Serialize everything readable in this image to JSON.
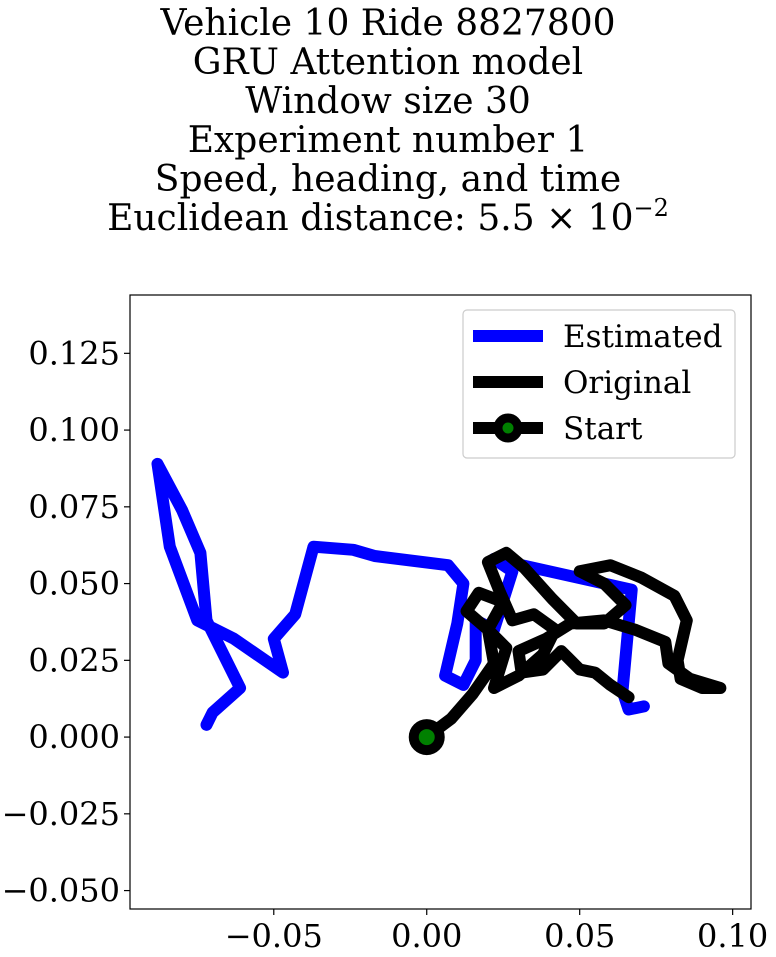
{
  "title": {
    "line1": "Vehicle 10 Ride 8827800",
    "line2": "GRU Attention model",
    "line3": "Window size 30",
    "line4": "Experiment number 1",
    "line5": "Speed, heading, and time",
    "line6_prefix": "Euclidean distance: 5.5 × 10",
    "line6_exponent": "−2"
  },
  "chart_data": {
    "type": "line",
    "xlim": [
      -0.097,
      0.106
    ],
    "ylim": [
      -0.056,
      0.144
    ],
    "x_ticks": [
      -0.05,
      0.0,
      0.05,
      0.1
    ],
    "x_tick_labels": [
      "−0.05",
      "0.00",
      "0.05",
      "0.10"
    ],
    "y_ticks": [
      0.125,
      0.1,
      0.075,
      0.05,
      0.025,
      0.0,
      -0.025,
      -0.05
    ],
    "y_tick_labels": [
      "0.125",
      "0.100",
      "0.075",
      "0.050",
      "0.025",
      "0.000",
      "−0.025",
      "−0.050"
    ],
    "grid": false,
    "legend_position": "top-right",
    "series": [
      {
        "name": "Estimated",
        "color": "#0000ff",
        "x": [
          -0.072,
          -0.07,
          -0.061,
          -0.072,
          -0.074,
          -0.08,
          -0.088,
          -0.084,
          -0.075,
          -0.063,
          -0.047,
          -0.05,
          -0.043,
          -0.037,
          -0.024,
          -0.017,
          0.007,
          0.012,
          0.01,
          0.006,
          0.012,
          0.016,
          0.016,
          0.022,
          0.028,
          0.022,
          0.067,
          0.064,
          0.066,
          0.071
        ],
        "y": [
          0.004,
          0.008,
          0.016,
          0.038,
          0.06,
          0.074,
          0.089,
          0.062,
          0.038,
          0.032,
          0.021,
          0.032,
          0.04,
          0.062,
          0.061,
          0.059,
          0.056,
          0.05,
          0.037,
          0.02,
          0.017,
          0.025,
          0.038,
          0.035,
          0.054,
          0.058,
          0.048,
          0.015,
          0.009,
          0.01
        ]
      },
      {
        "name": "Original",
        "color": "#000000",
        "x": [
          0.0,
          0.008,
          0.015,
          0.022,
          0.02,
          0.025,
          0.017,
          0.013,
          0.02,
          0.026,
          0.022,
          0.03,
          0.038,
          0.042,
          0.035,
          0.028,
          0.024,
          0.02,
          0.026,
          0.032,
          0.041,
          0.049,
          0.058,
          0.065,
          0.058,
          0.05,
          0.06,
          0.07,
          0.081,
          0.085,
          0.082,
          0.083,
          0.09,
          0.096,
          0.086,
          0.079,
          0.078,
          0.068,
          0.058,
          0.047,
          0.039,
          0.03,
          0.031,
          0.038,
          0.044,
          0.046,
          0.05,
          0.055,
          0.06,
          0.066
        ],
        "y": [
          0.0,
          0.006,
          0.014,
          0.024,
          0.035,
          0.044,
          0.047,
          0.041,
          0.035,
          0.029,
          0.016,
          0.02,
          0.027,
          0.035,
          0.04,
          0.038,
          0.047,
          0.057,
          0.06,
          0.055,
          0.045,
          0.037,
          0.037,
          0.043,
          0.05,
          0.054,
          0.056,
          0.052,
          0.046,
          0.038,
          0.025,
          0.019,
          0.016,
          0.016,
          0.019,
          0.024,
          0.031,
          0.035,
          0.038,
          0.037,
          0.032,
          0.028,
          0.021,
          0.022,
          0.028,
          0.026,
          0.022,
          0.021,
          0.017,
          0.013
        ]
      }
    ],
    "start_marker": {
      "name": "Start",
      "x": 0.0,
      "y": 0.0,
      "face_color": "#008000",
      "edge_color": "#000000"
    }
  }
}
